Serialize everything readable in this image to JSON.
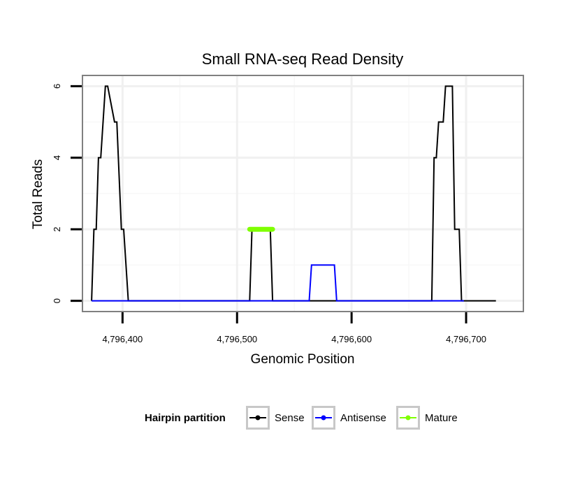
{
  "chart_data": {
    "type": "line",
    "title": "Small RNA-seq Read Density",
    "xlabel": "Genomic Position",
    "ylabel": "Total Reads",
    "xlim": [
      4796365,
      4796750
    ],
    "ylim": [
      -0.3,
      6.3
    ],
    "xticks": [
      4796400,
      4796500,
      4796600,
      4796700
    ],
    "xtick_labels": [
      "4,796,400",
      "4,796,500",
      "4,796,600",
      "4,796,700"
    ],
    "yticks": [
      0,
      2,
      4,
      6
    ],
    "ytick_labels": [
      "0",
      "2",
      "4",
      "6"
    ],
    "grid": true,
    "legend": {
      "title": "Hairpin partition",
      "position": "bottom"
    },
    "series": [
      {
        "name": "Sense",
        "color": "#000000",
        "x": [
          4796373,
          4796375,
          4796377,
          4796377,
          4796379,
          4796381,
          4796381,
          4796385,
          4796387,
          4796387,
          4796393,
          4796395,
          4796395,
          4796399,
          4796401,
          4796401,
          4796405,
          4796408,
          4796408,
          4796511,
          4796513,
          4796513,
          4796529,
          4796531,
          4796531,
          4796670,
          4796672,
          4796672,
          4796674,
          4796676,
          4796676,
          4796680,
          4796682,
          4796682,
          4796688,
          4796690,
          4796690,
          4796694,
          4796696,
          4796696,
          4796698,
          4796698,
          4796726
        ],
        "y": [
          0,
          2,
          2,
          2,
          4,
          4,
          4,
          6,
          6,
          6,
          5,
          5,
          5,
          2,
          2,
          2,
          0,
          0,
          0,
          0,
          2,
          2,
          2,
          0,
          0,
          0,
          4,
          4,
          4,
          5,
          5,
          5,
          6,
          6,
          6,
          2,
          2,
          2,
          0,
          0,
          0,
          0,
          0
        ]
      },
      {
        "name": "Antisense",
        "color": "#0000ff",
        "x": [
          4796373,
          4796563,
          4796565,
          4796585,
          4796587,
          4796698
        ],
        "y": [
          0,
          0,
          1,
          1,
          0,
          0
        ]
      },
      {
        "name": "Mature",
        "color": "#7fff00",
        "x": [
          4796511,
          4796531
        ],
        "y": [
          2,
          2
        ]
      }
    ]
  }
}
